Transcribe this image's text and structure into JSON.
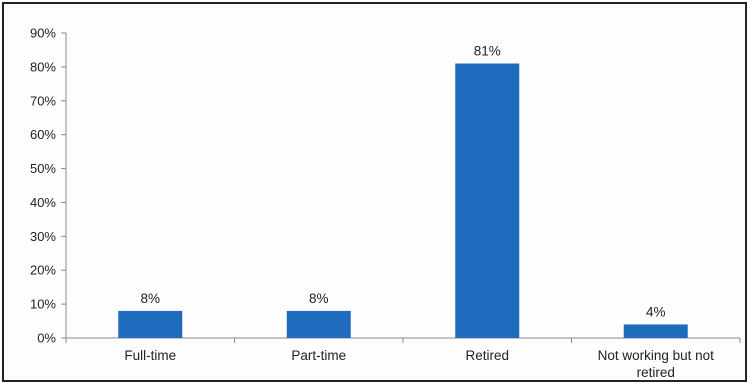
{
  "chart_data": {
    "type": "bar",
    "categories": [
      "Full-time",
      "Part-time",
      "Retired",
      "Not working but not retired"
    ],
    "values": [
      8,
      8,
      81,
      4
    ],
    "data_labels": [
      "8%",
      "8%",
      "81%",
      "4%"
    ],
    "ylim": [
      0,
      90
    ],
    "yticks": [
      "0%",
      "10%",
      "20%",
      "30%",
      "40%",
      "50%",
      "60%",
      "70%",
      "80%",
      "90%"
    ],
    "grid": false,
    "bar_color": "#1f6bbd"
  }
}
